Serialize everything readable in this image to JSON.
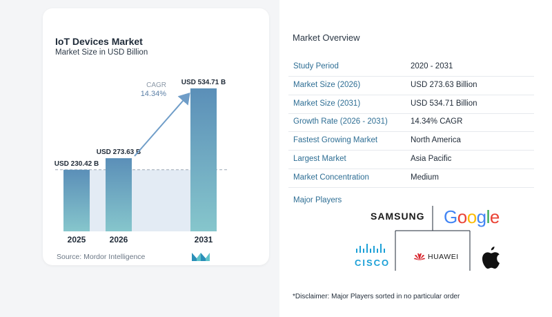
{
  "card": {
    "title": "IoT Devices Market",
    "subtitle": "Market Size in USD Billion",
    "source": "Source:  Mordor Intelligence"
  },
  "chart_data": {
    "type": "bar",
    "title": "IoT Devices Market",
    "subtitle": "Market Size in USD Billion",
    "categories": [
      "2025",
      "2026",
      "2031"
    ],
    "values": [
      230.42,
      273.63,
      534.71
    ],
    "data_labels": [
      "USD 230.42 B",
      "USD 273.63 B",
      "USD 534.71 B"
    ],
    "cagr_label": "CAGR",
    "cagr_value": "14.34%",
    "ylim": [
      0,
      534.71
    ],
    "grid": false,
    "colors": {
      "bar_top": "#5b8fb8",
      "bar_bottom": "#86c6cc",
      "band": "#e3ebf4",
      "arrow": "#6f9dc8",
      "dashed": "#9aa6b4"
    }
  },
  "overview": {
    "title": "Market Overview",
    "rows": [
      {
        "label": "Study Period",
        "value": "2020 - 2031"
      },
      {
        "label": "Market Size (2026)",
        "value": "USD 273.63 Billion"
      },
      {
        "label": "Market Size (2031)",
        "value": "USD 534.71 Billion"
      },
      {
        "label": "Growth Rate (2026 - 2031)",
        "value": "14.34% CAGR"
      },
      {
        "label": "Fastest Growing Market",
        "value": "North America"
      },
      {
        "label": "Largest Market",
        "value": "Asia Pacific"
      },
      {
        "label": "Market Concentration",
        "value": "Medium"
      }
    ]
  },
  "players": {
    "title": "Major Players",
    "samsung": "SAMSUNG",
    "google": "Google",
    "cisco": "CISCO",
    "huawei": "HUAWEI",
    "apple_icon": "apple-logo-icon"
  },
  "disclaimer": "*Disclaimer: Major Players sorted in no particular order"
}
